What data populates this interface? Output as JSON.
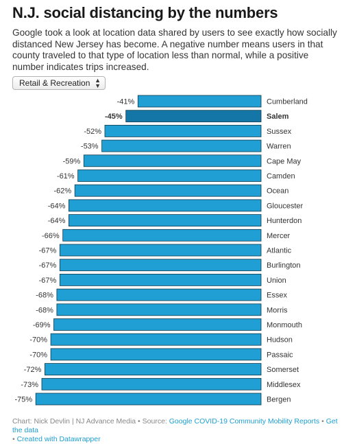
{
  "header": {
    "title": "N.J. social distancing by the numbers",
    "intro": "Google took a look at location data shared by users to see exactly how socially distanced New Jersey has become. A negative number means users in that county traveled to that type of location less than normal, while a positive number indicates trips increased."
  },
  "controls": {
    "selected_category": "Retail & Recreation"
  },
  "colors": {
    "bar": "#1f9fd3",
    "bar_highlight": "#1476a6",
    "bar_outline": "#12384a",
    "link": "#1d9fd0"
  },
  "footer": {
    "credit": "Chart: Nick Devlin | NJ Advance Media",
    "source_prefix": " • Source: ",
    "source_link": "Google COVID-19 Community Mobility Reports",
    "separator": " • ",
    "get_data": "Get the data",
    "created_with": "Created with Datawrapper"
  },
  "chart_data": {
    "type": "bar",
    "orientation": "horizontal",
    "value_suffix": "%",
    "highlight": "Salem",
    "categories": [
      "Cumberland",
      "Salem",
      "Sussex",
      "Warren",
      "Cape May",
      "Camden",
      "Ocean",
      "Gloucester",
      "Hunterdon",
      "Mercer",
      "Atlantic",
      "Burlington",
      "Union",
      "Essex",
      "Morris",
      "Monmouth",
      "Hudson",
      "Passaic",
      "Somerset",
      "Middlesex",
      "Bergen"
    ],
    "values": [
      -41,
      -45,
      -52,
      -53,
      -59,
      -61,
      -62,
      -64,
      -64,
      -66,
      -67,
      -67,
      -67,
      -68,
      -68,
      -69,
      -70,
      -70,
      -72,
      -73,
      -75
    ],
    "xlim": [
      -75,
      0
    ]
  }
}
